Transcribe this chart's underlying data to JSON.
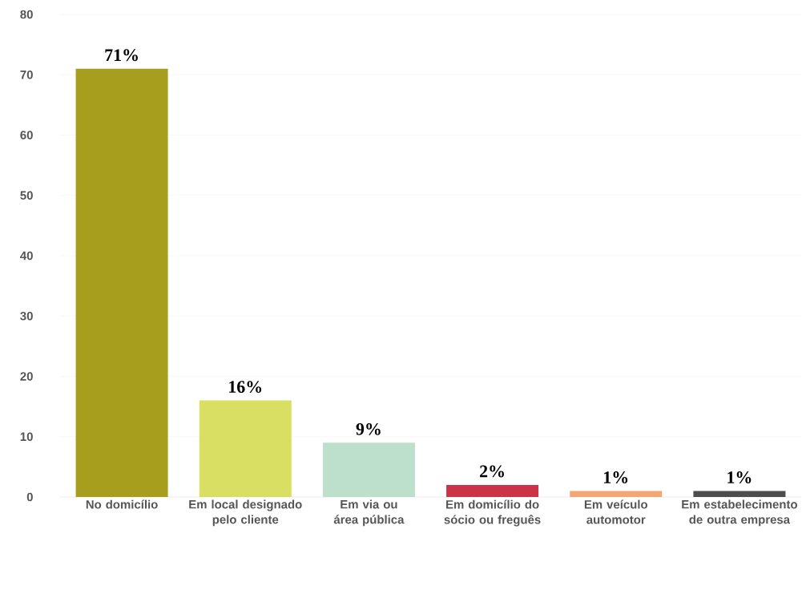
{
  "chart_data": {
    "type": "bar",
    "categories": [
      "No domicílio",
      "Em local designado pelo cliente",
      "Em via ou área pública",
      "Em domicílio do sócio ou freguês",
      "Em veículo automotor",
      "Em estabelecimento de outra empresa"
    ],
    "values": [
      71,
      16,
      9,
      2,
      1,
      1
    ],
    "colors": [
      "#a89e1e",
      "#d8df62",
      "#bde0cd",
      "#cc3347",
      "#f4a772",
      "#4d4d4d"
    ],
    "value_labels": [
      "71%",
      "16%",
      "9%",
      "2%",
      "1%",
      "1%"
    ],
    "ylim": [
      0,
      80
    ],
    "yticks": [
      0,
      10,
      20,
      30,
      40,
      50,
      60,
      70,
      80
    ],
    "grid": "y"
  }
}
